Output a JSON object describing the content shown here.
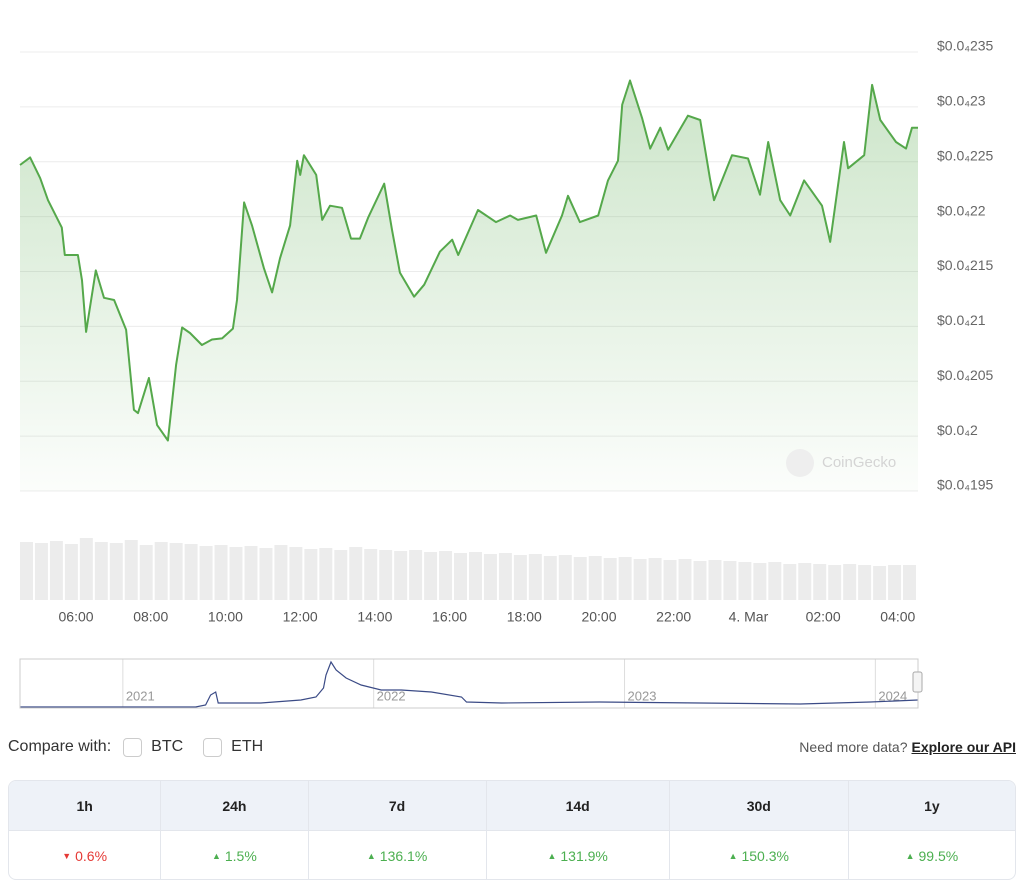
{
  "chart_data": {
    "type": "line",
    "color": "#55a84b",
    "watermark": "CoinGecko",
    "x": [
      4.5,
      4.77,
      5.04,
      5.25,
      5.62,
      5.7,
      6.05,
      6.16,
      6.27,
      6.53,
      6.75,
      7.02,
      7.34,
      7.55,
      7.66,
      7.95,
      8.17,
      8.46,
      8.68,
      8.84,
      9.05,
      9.37,
      9.64,
      9.91,
      10.2,
      10.31,
      10.5,
      10.71,
      11.03,
      11.25,
      11.46,
      11.73,
      11.92,
      12.0,
      12.1,
      12.43,
      12.59,
      12.8,
      13.12,
      13.36,
      13.6,
      13.82,
      14.25,
      14.46,
      14.67,
      15.05,
      15.32,
      15.74,
      16.07,
      16.23,
      16.76,
      17.24,
      17.62,
      17.83,
      18.32,
      18.58,
      19.01,
      19.17,
      19.49,
      19.98,
      20.24,
      20.51,
      20.62,
      20.83,
      21.15,
      21.37,
      21.64,
      21.85,
      22.38,
      22.71,
      22.97,
      23.08,
      23.56,
      23.99,
      24.31,
      24.53,
      24.85,
      25.12,
      25.49,
      25.97,
      26.19,
      26.56,
      26.67,
      27.1,
      27.31,
      27.53,
      27.95,
      28.22,
      28.38,
      28.54
    ],
    "values": [
      2.247e-05,
      2.254e-05,
      2.235e-05,
      2.215e-05,
      2.19e-05,
      2.165e-05,
      2.165e-05,
      2.142e-05,
      2.095e-05,
      2.151e-05,
      2.126e-05,
      2.124e-05,
      2.097e-05,
      2.024e-05,
      2.021e-05,
      2.053e-05,
      2.01e-05,
      1.996e-05,
      2.065e-05,
      2.099e-05,
      2.094e-05,
      2.083e-05,
      2.088e-05,
      2.089e-05,
      2.098e-05,
      2.124e-05,
      2.213e-05,
      2.192e-05,
      2.153e-05,
      2.131e-05,
      2.162e-05,
      2.192e-05,
      2.251e-05,
      2.238e-05,
      2.256e-05,
      2.238e-05,
      2.197e-05,
      2.21e-05,
      2.208e-05,
      2.18e-05,
      2.18e-05,
      2.199e-05,
      2.23e-05,
      2.188e-05,
      2.149e-05,
      2.127e-05,
      2.138e-05,
      2.168e-05,
      2.179e-05,
      2.165e-05,
      2.206e-05,
      2.195e-05,
      2.201e-05,
      2.197e-05,
      2.201e-05,
      2.167e-05,
      2.201e-05,
      2.219e-05,
      2.195e-05,
      2.201e-05,
      2.233e-05,
      2.251e-05,
      2.302e-05,
      2.324e-05,
      2.29e-05,
      2.262e-05,
      2.281e-05,
      2.261e-05,
      2.292e-05,
      2.288e-05,
      2.235e-05,
      2.215e-05,
      2.256e-05,
      2.253e-05,
      2.22e-05,
      2.268e-05,
      2.215e-05,
      2.201e-05,
      2.233e-05,
      2.21e-05,
      2.177e-05,
      2.268e-05,
      2.244e-05,
      2.256e-05,
      2.32e-05,
      2.288e-05,
      2.268e-05,
      2.262e-05,
      2.281e-05,
      2.281e-05
    ],
    "xlim": [
      4.5,
      28.54
    ],
    "xticks": [
      {
        "value": 6,
        "label": "06:00"
      },
      {
        "value": 8,
        "label": "08:00"
      },
      {
        "value": 10,
        "label": "10:00"
      },
      {
        "value": 12,
        "label": "12:00"
      },
      {
        "value": 14,
        "label": "14:00"
      },
      {
        "value": 16,
        "label": "16:00"
      },
      {
        "value": 18,
        "label": "18:00"
      },
      {
        "value": 20,
        "label": "20:00"
      },
      {
        "value": 22,
        "label": "22:00"
      },
      {
        "value": 24,
        "label": "4. Mar"
      },
      {
        "value": 26,
        "label": "02:00"
      },
      {
        "value": 28,
        "label": "04:00"
      }
    ],
    "ylim": [
      1.95e-05,
      2.35e-05
    ],
    "yticks": [
      {
        "value": 1.95e-05,
        "label": "$0.0₄195"
      },
      {
        "value": 2e-05,
        "label": "$0.0₄2"
      },
      {
        "value": 2.05e-05,
        "label": "$0.0₄205"
      },
      {
        "value": 2.1e-05,
        "label": "$0.0₄21"
      },
      {
        "value": 2.15e-05,
        "label": "$0.0₄215"
      },
      {
        "value": 2.2e-05,
        "label": "$0.0₄22"
      },
      {
        "value": 2.25e-05,
        "label": "$0.0₄225"
      },
      {
        "value": 2.3e-05,
        "label": "$0.0₄23"
      },
      {
        "value": 2.35e-05,
        "label": "$0.0₄235"
      }
    ],
    "grid": true,
    "volume_values": [
      58,
      57,
      59,
      56,
      62,
      58,
      57,
      60,
      55,
      58,
      57,
      56,
      54,
      55,
      53,
      54,
      52,
      55,
      53,
      51,
      52,
      50,
      53,
      51,
      50,
      49,
      50,
      48,
      49,
      47,
      48,
      46,
      47,
      45,
      46,
      44,
      45,
      43,
      44,
      42,
      43,
      41,
      42,
      40,
      41,
      39,
      40,
      39,
      38,
      37,
      38,
      36,
      37,
      36,
      35,
      36,
      35,
      34,
      35,
      35
    ],
    "navigator": {
      "color": "#3b4b86",
      "x": [
        2020.59,
        2021.29,
        2021.33,
        2021.35,
        2021.37,
        2021.38,
        2021.55,
        2021.71,
        2021.77,
        2021.8,
        2021.81,
        2021.83,
        2021.85,
        2021.89,
        2021.95,
        2022.03,
        2022.11,
        2022.23,
        2022.35,
        2022.37,
        2022.51,
        2022.9,
        2023.3,
        2023.7,
        2023.98,
        2024.17
      ],
      "values": [
        0,
        0,
        2,
        12,
        15,
        4,
        4,
        7,
        10,
        19,
        32,
        45,
        37,
        29,
        22,
        17,
        17,
        15,
        10,
        5,
        4,
        5,
        4,
        3,
        5,
        7
      ],
      "xlim": [
        2020.59,
        2024.17
      ],
      "xticks": [
        {
          "value": 2021,
          "label": "2021"
        },
        {
          "value": 2022,
          "label": "2022"
        },
        {
          "value": 2023,
          "label": "2023"
        },
        {
          "value": 2024,
          "label": "2024"
        }
      ]
    }
  },
  "compare": {
    "label": "Compare with:",
    "options": [
      "BTC",
      "ETH"
    ]
  },
  "api": {
    "prompt": "Need more data?",
    "link": "Explore our API"
  },
  "performance": {
    "headers": [
      "1h",
      "24h",
      "7d",
      "14d",
      "30d",
      "1y"
    ],
    "changes": [
      {
        "label": "0.6%",
        "direction": "down"
      },
      {
        "label": "1.5%",
        "direction": "up"
      },
      {
        "label": "136.1%",
        "direction": "up"
      },
      {
        "label": "131.9%",
        "direction": "up"
      },
      {
        "label": "150.3%",
        "direction": "up"
      },
      {
        "label": "99.5%",
        "direction": "up"
      }
    ]
  }
}
